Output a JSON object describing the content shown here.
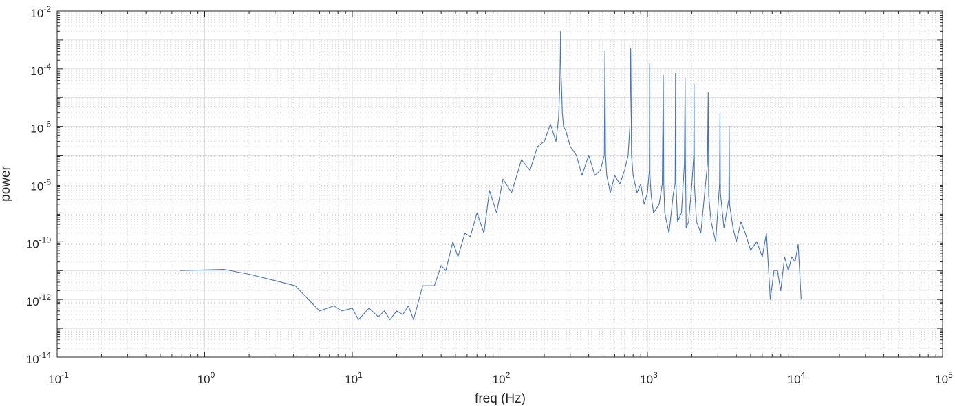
{
  "chart_data": {
    "type": "line",
    "title": "",
    "xlabel": "freq (Hz)",
    "ylabel": "power",
    "xscale": "log",
    "yscale": "log",
    "xlim": [
      0.1,
      100000
    ],
    "ylim": [
      1e-14,
      0.01
    ],
    "grid": true,
    "minor_grid": true,
    "x_ticks": [
      {
        "base": "10",
        "exp": "-1"
      },
      {
        "base": "10",
        "exp": "0"
      },
      {
        "base": "10",
        "exp": "1"
      },
      {
        "base": "10",
        "exp": "2"
      },
      {
        "base": "10",
        "exp": "3"
      },
      {
        "base": "10",
        "exp": "4"
      },
      {
        "base": "10",
        "exp": "5"
      }
    ],
    "y_ticks": [
      {
        "base": "10",
        "exp": "-14"
      },
      {
        "base": "10",
        "exp": "-12"
      },
      {
        "base": "10",
        "exp": "-10"
      },
      {
        "base": "10",
        "exp": "-8"
      },
      {
        "base": "10",
        "exp": "-6"
      },
      {
        "base": "10",
        "exp": "-4"
      },
      {
        "base": "10",
        "exp": "-2"
      }
    ],
    "line_color": "#4472c4",
    "series": [
      {
        "x": [
          0.68,
          1.35,
          2.0,
          3.0,
          4.1,
          6.0,
          7.5,
          8.5,
          10.0,
          11.0,
          13.0,
          15.0,
          16.5,
          18.0,
          20.0,
          22.0,
          24.0,
          26.0,
          28.0,
          30.0,
          33.0,
          36.0,
          40.0,
          43.0,
          48.0,
          52.0,
          58.0,
          63.0,
          70.0,
          78.0,
          85.0,
          95.0,
          105.0,
          120.0,
          140.0,
          160.0,
          180.0,
          200.0,
          220.0,
          240.0,
          250.0,
          255.0,
          258.0,
          260.0,
          262.0,
          265.0,
          270.0,
          280.0,
          300.0,
          330.0,
          360.0,
          400.0,
          440.0,
          480.0,
          510.0,
          515.0,
          520.0,
          530.0,
          560.0,
          600.0,
          650.0,
          700.0,
          740.0,
          760.0,
          770.0,
          775.0,
          780.0,
          800.0,
          850.0,
          900.0,
          950.0,
          1000.0,
          1030.0,
          1035.0,
          1040.0,
          1060.0,
          1100.0,
          1200.0,
          1260.0,
          1280.0,
          1290.0,
          1310.0,
          1400.0,
          1500.0,
          1540.0,
          1550.0,
          1560.0,
          1600.0,
          1700.0,
          1780.0,
          1800.0,
          1810.0,
          1830.0,
          1900.0,
          2000.0,
          2060.0,
          2070.0,
          2080.0,
          2150.0,
          2300.0,
          2550.0,
          2580.0,
          2600.0,
          2700.0,
          2900.0,
          3080.0,
          3100.0,
          3120.0,
          3300.0,
          3560.0,
          3580.0,
          3600.0,
          3800.0,
          4000.0,
          4300.0,
          4600.0,
          5000.0,
          5500.0,
          6000.0,
          6400.0,
          6800.0,
          7200.0,
          7600.0,
          8000.0,
          8500.0,
          9000.0,
          9500.0,
          10000.0,
          10500.0,
          11000.0
        ],
        "y": [
          1e-11,
          1.1e-11,
          7.5e-12,
          4.5e-12,
          3e-12,
          4e-13,
          6e-13,
          4e-13,
          5e-13,
          2e-13,
          5e-13,
          2.5e-13,
          4e-13,
          2e-13,
          4e-13,
          3e-13,
          6e-13,
          2e-13,
          8e-13,
          3e-12,
          3e-12,
          3e-12,
          1.5e-11,
          1e-11,
          1e-10,
          3e-11,
          2e-10,
          1.5e-10,
          1e-09,
          2e-10,
          6e-09,
          1e-09,
          1.5e-08,
          5e-09,
          7e-08,
          3e-08,
          2e-07,
          3e-07,
          1.2e-06,
          3e-07,
          2e-06,
          3e-05,
          0.002,
          6e-05,
          2e-05,
          3e-06,
          1e-06,
          7e-07,
          2e-07,
          1e-07,
          2e-08,
          1e-07,
          2e-08,
          3e-08,
          1e-07,
          0.0004,
          1e-07,
          2e-08,
          5e-09,
          2e-08,
          1e-08,
          3e-08,
          1e-07,
          1e-06,
          0.0005,
          1e-05,
          1e-07,
          2e-08,
          5e-09,
          1e-08,
          2e-09,
          5e-09,
          3e-08,
          0.00015,
          2e-08,
          4e-09,
          1e-09,
          2e-09,
          1e-08,
          6e-05,
          1e-08,
          1e-09,
          2e-10,
          5e-09,
          1e-08,
          7e-05,
          1e-08,
          5e-10,
          1e-09,
          5e-08,
          5e-05,
          5e-08,
          3e-10,
          5e-10,
          1e-08,
          1e-07,
          3e-05,
          1e-08,
          5e-10,
          2e-10,
          5e-08,
          1.5e-05,
          4e-09,
          5e-10,
          1e-10,
          1e-08,
          3e-06,
          5e-09,
          3e-10,
          3e-09,
          1e-06,
          2e-09,
          3e-10,
          1e-10,
          5e-10,
          2e-10,
          5e-11,
          1e-10,
          3e-11,
          2e-10,
          1e-12,
          1e-11,
          1e-11,
          2e-12,
          3e-11,
          1e-11,
          3e-11,
          2e-11,
          8e-11,
          1e-12
        ]
      }
    ]
  }
}
